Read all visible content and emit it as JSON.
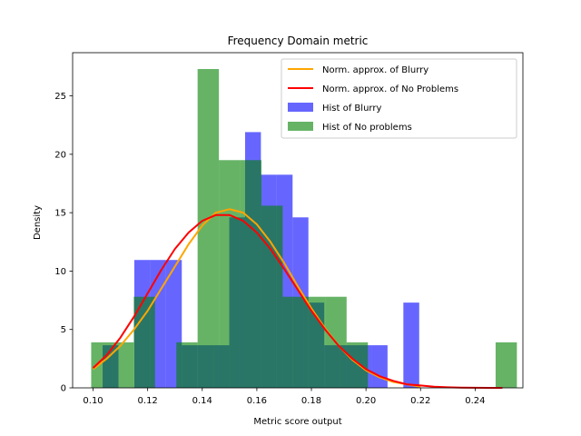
{
  "chart_data": {
    "type": "histogram",
    "title": "Frequency Domain metric",
    "xlabel": "Metric score output",
    "ylabel": "Density",
    "xlim": [
      0.0925,
      0.2575
    ],
    "ylim": [
      0,
      28.7
    ],
    "xticks": [
      0.1,
      0.12,
      0.14,
      0.16,
      0.18,
      0.2,
      0.22,
      0.24
    ],
    "xtick_labels": [
      "0.10",
      "0.12",
      "0.14",
      "0.16",
      "0.18",
      "0.20",
      "0.22",
      "0.24"
    ],
    "yticks": [
      0,
      5,
      10,
      15,
      20,
      25
    ],
    "ytick_labels": [
      "0",
      "5",
      "10",
      "15",
      "20",
      "25"
    ],
    "grid": false,
    "legend_position": "top-right",
    "histograms": [
      {
        "name": "Hist of Blurry",
        "color": "#0000ff",
        "alpha": 0.6,
        "bins": [
          {
            "x0": 0.1035,
            "x1": 0.1093,
            "y": 3.65
          },
          {
            "x0": 0.1093,
            "x1": 0.1151,
            "y": 0
          },
          {
            "x0": 0.1151,
            "x1": 0.1209,
            "y": 10.95
          },
          {
            "x0": 0.1209,
            "x1": 0.1267,
            "y": 10.95
          },
          {
            "x0": 0.1267,
            "x1": 0.1325,
            "y": 10.95
          },
          {
            "x0": 0.1325,
            "x1": 0.1383,
            "y": 3.65
          },
          {
            "x0": 0.1383,
            "x1": 0.1441,
            "y": 3.65
          },
          {
            "x0": 0.1441,
            "x1": 0.1499,
            "y": 3.65
          },
          {
            "x0": 0.1499,
            "x1": 0.1557,
            "y": 14.6
          },
          {
            "x0": 0.1557,
            "x1": 0.1615,
            "y": 21.9
          },
          {
            "x0": 0.1615,
            "x1": 0.1673,
            "y": 18.25
          },
          {
            "x0": 0.1673,
            "x1": 0.1731,
            "y": 18.25
          },
          {
            "x0": 0.1731,
            "x1": 0.1789,
            "y": 14.6
          },
          {
            "x0": 0.1789,
            "x1": 0.1847,
            "y": 7.3
          },
          {
            "x0": 0.1847,
            "x1": 0.1905,
            "y": 3.65
          },
          {
            "x0": 0.1905,
            "x1": 0.1963,
            "y": 3.65
          },
          {
            "x0": 0.1963,
            "x1": 0.2021,
            "y": 3.65
          },
          {
            "x0": 0.2021,
            "x1": 0.2079,
            "y": 3.65
          },
          {
            "x0": 0.2079,
            "x1": 0.2137,
            "y": 0
          },
          {
            "x0": 0.2137,
            "x1": 0.2195,
            "y": 7.3
          }
        ]
      },
      {
        "name": "Hist of No problems",
        "color": "#008000",
        "alpha": 0.6,
        "bins": [
          {
            "x0": 0.0993,
            "x1": 0.1071,
            "y": 3.9
          },
          {
            "x0": 0.1071,
            "x1": 0.1149,
            "y": 3.9
          },
          {
            "x0": 0.1149,
            "x1": 0.1227,
            "y": 7.8
          },
          {
            "x0": 0.1227,
            "x1": 0.1305,
            "y": 0
          },
          {
            "x0": 0.1305,
            "x1": 0.1383,
            "y": 3.9
          },
          {
            "x0": 0.1383,
            "x1": 0.1461,
            "y": 27.3
          },
          {
            "x0": 0.1461,
            "x1": 0.1539,
            "y": 19.5
          },
          {
            "x0": 0.1539,
            "x1": 0.1617,
            "y": 19.5
          },
          {
            "x0": 0.1617,
            "x1": 0.1695,
            "y": 15.6
          },
          {
            "x0": 0.1695,
            "x1": 0.1773,
            "y": 7.8
          },
          {
            "x0": 0.1773,
            "x1": 0.1851,
            "y": 7.8
          },
          {
            "x0": 0.1851,
            "x1": 0.1929,
            "y": 7.8
          },
          {
            "x0": 0.1929,
            "x1": 0.2007,
            "y": 3.9
          },
          {
            "x0": 0.2007,
            "x1": 0.2085,
            "y": 0
          },
          {
            "x0": 0.2085,
            "x1": 0.2163,
            "y": 0
          },
          {
            "x0": 0.2163,
            "x1": 0.2241,
            "y": 0
          },
          {
            "x0": 0.2241,
            "x1": 0.2319,
            "y": 0
          },
          {
            "x0": 0.2319,
            "x1": 0.2397,
            "y": 0
          },
          {
            "x0": 0.2397,
            "x1": 0.2475,
            "y": 0
          },
          {
            "x0": 0.2475,
            "x1": 0.2553,
            "y": 3.9
          }
        ]
      }
    ],
    "curves": [
      {
        "name": "Norm. approx. of Blurry",
        "color": "#ffa500",
        "x": [
          0.1,
          0.105,
          0.11,
          0.115,
          0.12,
          0.125,
          0.13,
          0.135,
          0.14,
          0.145,
          0.15,
          0.155,
          0.16,
          0.165,
          0.17,
          0.175,
          0.18,
          0.185,
          0.19,
          0.195,
          0.2,
          0.205,
          0.21,
          0.215,
          0.22
        ],
        "y": [
          1.6,
          2.5,
          3.6,
          5.0,
          6.6,
          8.5,
          10.4,
          12.3,
          13.9,
          15.0,
          15.3,
          15.0,
          14.0,
          12.5,
          10.7,
          8.7,
          6.8,
          5.1,
          3.6,
          2.4,
          1.5,
          0.9,
          0.5,
          0.3,
          0.1
        ]
      },
      {
        "name": "Norm. approx. of No Problems",
        "color": "#ff0000",
        "x": [
          0.1,
          0.105,
          0.11,
          0.115,
          0.12,
          0.125,
          0.13,
          0.135,
          0.14,
          0.145,
          0.15,
          0.155,
          0.16,
          0.165,
          0.17,
          0.175,
          0.18,
          0.185,
          0.19,
          0.195,
          0.2,
          0.205,
          0.21,
          0.215,
          0.22,
          0.225,
          0.23,
          0.235,
          0.24,
          0.245,
          0.25
        ],
        "y": [
          1.7,
          2.8,
          4.3,
          6.1,
          8.1,
          10.1,
          11.9,
          13.3,
          14.3,
          14.8,
          14.8,
          14.3,
          13.3,
          11.9,
          10.2,
          8.4,
          6.6,
          5.0,
          3.6,
          2.5,
          1.6,
          1.0,
          0.6,
          0.3,
          0.2,
          0.1,
          0.05,
          0.02,
          0.01,
          0.0,
          0.0
        ]
      }
    ],
    "legend": [
      {
        "label": "Norm. approx. of Blurry",
        "kind": "line",
        "color": "#ffa500"
      },
      {
        "label": "Norm. approx. of No Problems",
        "kind": "line",
        "color": "#ff0000"
      },
      {
        "label": "Hist of Blurry",
        "kind": "patch",
        "color": "#0000ff",
        "alpha": 0.6
      },
      {
        "label": "Hist of No problems",
        "kind": "patch",
        "color": "#008000",
        "alpha": 0.6
      }
    ]
  }
}
